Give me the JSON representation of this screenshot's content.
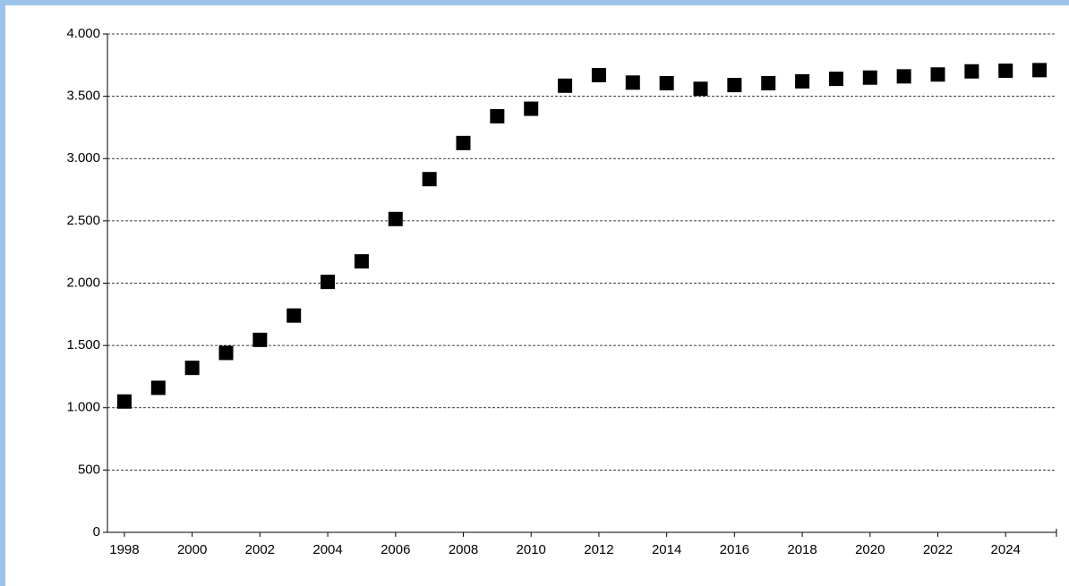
{
  "chart_data": {
    "type": "scatter",
    "x": [
      1998,
      1999,
      2000,
      2001,
      2002,
      2003,
      2004,
      2005,
      2006,
      2007,
      2008,
      2009,
      2010,
      2011,
      2012,
      2013,
      2014,
      2015,
      2016,
      2017,
      2018,
      2019,
      2020,
      2021,
      2022,
      2023,
      2024,
      2025
    ],
    "values": [
      1050,
      1160,
      1320,
      1440,
      1545,
      1740,
      2010,
      2175,
      2515,
      2835,
      3125,
      3340,
      3400,
      3585,
      3670,
      3610,
      3605,
      3560,
      3590,
      3605,
      3620,
      3640,
      3650,
      3660,
      3675,
      3700,
      3705,
      3710
    ],
    "color": "#000000",
    "xlim": [
      1997.5,
      2025.5
    ],
    "xticks": [
      1998,
      2000,
      2002,
      2004,
      2006,
      2008,
      2010,
      2012,
      2014,
      2016,
      2018,
      2020,
      2022,
      2024
    ],
    "ylim": [
      0,
      4000
    ],
    "yticks": [
      0,
      500,
      {
        "value": 1000,
        "label": "1.000"
      },
      {
        "value": 1500,
        "label": "1.500"
      },
      {
        "value": 2000,
        "label": "2.000"
      },
      {
        "value": 2500,
        "label": "2.500"
      },
      {
        "value": 3000,
        "label": "3.000"
      },
      {
        "value": 3500,
        "label": "3.500"
      },
      {
        "value": 4000,
        "label": "4.000"
      }
    ],
    "grid": true
  }
}
